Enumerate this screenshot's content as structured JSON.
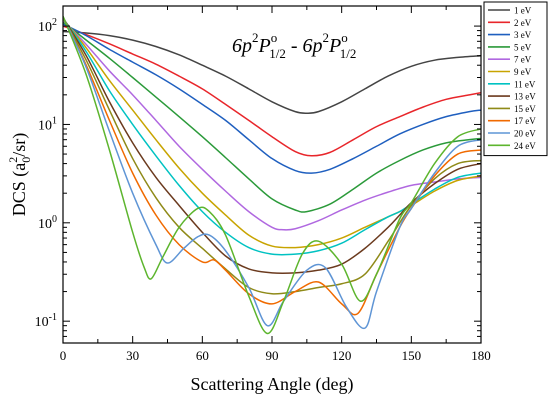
{
  "chart_data": {
    "type": "line",
    "title_parts": [
      "6p",
      "2",
      "P",
      "o",
      "1/2",
      " - 6p",
      "2",
      "P",
      "o",
      "1/2"
    ],
    "xlabel": "Scattering Angle (deg)",
    "ylabel_parts": [
      "DCS (a",
      "0",
      "2",
      "/sr)"
    ],
    "xlim": [
      0,
      180
    ],
    "ylim": [
      0.06,
      160
    ],
    "yscale": "log",
    "xticks": [
      0,
      30,
      60,
      90,
      120,
      150,
      180
    ],
    "xtick_labels": [
      "0",
      "30",
      "60",
      "90",
      "120",
      "150",
      "180"
    ],
    "yticks": [
      0.1,
      1,
      10,
      100
    ],
    "ytick_label_parts": [
      [
        "10",
        "-1"
      ],
      [
        "10",
        "0"
      ],
      [
        "10",
        "1"
      ],
      [
        "10",
        "2"
      ]
    ],
    "grid": false,
    "legend_position": "top-right",
    "series": [
      {
        "name": "1 eV",
        "color": "#444444",
        "x": [
          0,
          10,
          20,
          30,
          40,
          50,
          60,
          70,
          80,
          90,
          100,
          105,
          110,
          120,
          130,
          140,
          150,
          160,
          170,
          180
        ],
        "y": [
          88,
          85,
          80,
          72,
          62,
          51,
          40,
          31,
          23,
          17,
          13.5,
          13,
          13.5,
          17,
          23,
          31,
          39,
          45,
          48,
          50
        ]
      },
      {
        "name": "2 eV",
        "color": "#e8262b",
        "x": [
          0,
          10,
          20,
          30,
          40,
          50,
          60,
          70,
          80,
          90,
          100,
          107,
          115,
          125,
          135,
          145,
          155,
          165,
          175,
          180
        ],
        "y": [
          100,
          82,
          66,
          52,
          41,
          31,
          23,
          16,
          11,
          7.5,
          5.3,
          4.8,
          5.2,
          7,
          9.5,
          12,
          15,
          18,
          20,
          21
        ]
      },
      {
        "name": "3 eV",
        "color": "#1f5fbf",
        "x": [
          0,
          10,
          20,
          30,
          40,
          50,
          60,
          70,
          80,
          90,
          100,
          107,
          115,
          125,
          135,
          145,
          155,
          165,
          175,
          180
        ],
        "y": [
          105,
          80,
          58,
          43,
          32,
          23,
          16,
          11,
          7,
          4.5,
          3.4,
          3.2,
          3.5,
          4.5,
          6,
          8,
          10,
          12,
          13.5,
          14
        ]
      },
      {
        "name": "5 eV",
        "color": "#2b9a3a",
        "x": [
          0,
          10,
          20,
          30,
          40,
          50,
          60,
          70,
          80,
          90,
          100,
          105,
          115,
          125,
          135,
          145,
          155,
          165,
          175,
          180
        ],
        "y": [
          110,
          72,
          47,
          30,
          19,
          12,
          7.5,
          4.6,
          2.8,
          1.75,
          1.35,
          1.3,
          1.55,
          2.2,
          3.2,
          4.3,
          5.5,
          6.5,
          7,
          7.2
        ]
      },
      {
        "name": "7 eV",
        "color": "#b068e0",
        "x": [
          0,
          10,
          20,
          30,
          40,
          50,
          60,
          70,
          80,
          90,
          95,
          100,
          110,
          120,
          130,
          140,
          150,
          160,
          170,
          180
        ],
        "y": [
          115,
          65,
          35,
          20,
          11,
          6,
          3.5,
          2.1,
          1.3,
          0.9,
          0.85,
          0.87,
          1.05,
          1.35,
          1.7,
          2.05,
          2.4,
          2.6,
          2.8,
          2.9
        ]
      },
      {
        "name": "9 eV",
        "color": "#c8a400",
        "x": [
          0,
          10,
          20,
          30,
          40,
          50,
          60,
          70,
          80,
          90,
          100,
          110,
          120,
          130,
          140,
          145,
          150,
          160,
          170,
          180
        ],
        "y": [
          118,
          60,
          28,
          14,
          7,
          3.6,
          2,
          1.2,
          0.75,
          0.58,
          0.56,
          0.6,
          0.7,
          0.9,
          1.15,
          1.3,
          1.5,
          2.1,
          2.7,
          3
        ]
      },
      {
        "name": "11 eV",
        "color": "#00c2c2",
        "x": [
          0,
          10,
          20,
          30,
          40,
          50,
          60,
          70,
          80,
          90,
          100,
          110,
          120,
          130,
          140,
          145,
          150,
          160,
          170,
          180
        ],
        "y": [
          120,
          55,
          22,
          10,
          4.8,
          2.4,
          1.3,
          0.8,
          0.56,
          0.48,
          0.48,
          0.52,
          0.62,
          0.85,
          1.15,
          1.3,
          1.55,
          2.2,
          2.9,
          3.2
        ]
      },
      {
        "name": "13 eV",
        "color": "#6b3a1e",
        "x": [
          0,
          10,
          20,
          30,
          40,
          50,
          60,
          70,
          80,
          90,
          100,
          110,
          120,
          130,
          140,
          145,
          150,
          160,
          170,
          180
        ],
        "y": [
          122,
          50,
          17,
          6.5,
          2.9,
          1.5,
          0.8,
          0.46,
          0.34,
          0.31,
          0.31,
          0.33,
          0.38,
          0.55,
          0.9,
          1.2,
          1.6,
          2.5,
          3.5,
          4
        ]
      },
      {
        "name": "15 eV",
        "color": "#8f8a18",
        "x": [
          0,
          10,
          20,
          30,
          40,
          50,
          60,
          70,
          80,
          90,
          100,
          110,
          120,
          130,
          140,
          145,
          150,
          160,
          170,
          180
        ],
        "y": [
          123,
          45,
          14,
          4.5,
          1.8,
          0.9,
          0.55,
          0.34,
          0.22,
          0.19,
          0.2,
          0.22,
          0.24,
          0.3,
          0.65,
          1,
          1.5,
          2.8,
          4,
          4.3
        ]
      },
      {
        "name": "17 eV",
        "color": "#f06a00",
        "x": [
          0,
          10,
          20,
          30,
          40,
          50,
          60,
          65,
          70,
          80,
          90,
          100,
          110,
          120,
          127,
          135,
          145,
          150,
          160,
          170,
          180
        ],
        "y": [
          124,
          40,
          11,
          3.2,
          1.2,
          0.6,
          0.4,
          0.42,
          0.33,
          0.19,
          0.15,
          0.2,
          0.25,
          0.15,
          0.12,
          0.3,
          0.9,
          1.4,
          3,
          5,
          5.5
        ]
      },
      {
        "name": "20 eV",
        "color": "#5f95d5",
        "x": [
          0,
          10,
          20,
          30,
          40,
          45,
          52,
          58,
          63,
          70,
          80,
          88,
          95,
          105,
          113,
          122,
          130,
          135,
          145,
          150,
          160,
          170,
          180
        ],
        "y": [
          125,
          38,
          8.5,
          2,
          0.6,
          0.39,
          0.55,
          0.72,
          0.75,
          0.52,
          0.22,
          0.09,
          0.16,
          0.33,
          0.35,
          0.14,
          0.085,
          0.2,
          0.9,
          1.4,
          3.2,
          6,
          7
        ]
      },
      {
        "name": "24 eV",
        "color": "#5db52e",
        "x": [
          0,
          10,
          20,
          30,
          35,
          38,
          43,
          50,
          58,
          63,
          70,
          80,
          88,
          95,
          103,
          110,
          120,
          128,
          135,
          145,
          150,
          160,
          170,
          180
        ],
        "y": [
          126,
          32,
          5.5,
          0.8,
          0.35,
          0.27,
          0.45,
          0.9,
          1.4,
          1.3,
          0.75,
          0.18,
          0.075,
          0.16,
          0.48,
          0.65,
          0.38,
          0.16,
          0.3,
          1.1,
          1.6,
          4,
          7.5,
          9
        ]
      }
    ]
  }
}
